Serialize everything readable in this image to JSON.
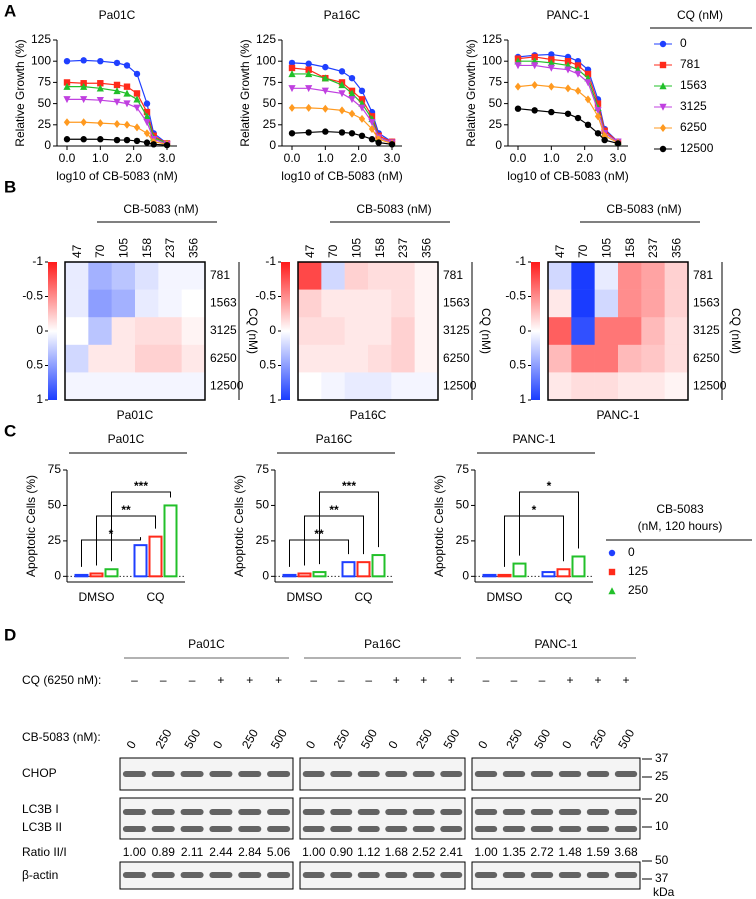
{
  "panel_labels": [
    "A",
    "B",
    "C",
    "D"
  ],
  "chart_data": [
    {
      "type": "line",
      "title": "Pa01C",
      "xlabel": "log10 of CB-5083 (nM)",
      "ylabel": "Relative Growth (%)",
      "legend_title": "CQ (nM)",
      "x": [
        0,
        0.5,
        1.0,
        1.5,
        1.8,
        2.1,
        2.4,
        2.6,
        3.0
      ],
      "xlim": [
        -0.3,
        3.3
      ],
      "xticks": [
        {
          "value": 0,
          "label": "0.0"
        },
        {
          "value": 1,
          "label": "1.0"
        },
        {
          "value": 2,
          "label": "2.0"
        },
        {
          "value": 3,
          "label": "3.0"
        }
      ],
      "ylim": [
        0,
        125
      ],
      "yticks": [
        0,
        25,
        50,
        75,
        100,
        125
      ],
      "series": [
        {
          "name": "0",
          "color": "#1f3fff",
          "values": [
            100,
            101,
            100,
            98,
            95,
            85,
            50,
            15,
            3
          ]
        },
        {
          "name": "781",
          "color": "#ff2a1a",
          "values": [
            75,
            74,
            74,
            72,
            70,
            62,
            40,
            12,
            3
          ]
        },
        {
          "name": "1563",
          "color": "#22c02a",
          "values": [
            70,
            70,
            68,
            65,
            62,
            55,
            35,
            10,
            3
          ]
        },
        {
          "name": "3125",
          "color": "#c040e0",
          "values": [
            55,
            55,
            54,
            52,
            50,
            45,
            28,
            8,
            2
          ]
        },
        {
          "name": "6250",
          "color": "#ff9a20",
          "values": [
            28,
            28,
            27,
            26,
            25,
            22,
            15,
            5,
            2
          ]
        },
        {
          "name": "12500",
          "color": "#000000",
          "values": [
            8,
            8,
            8,
            7,
            7,
            6,
            4,
            2,
            1
          ]
        }
      ]
    },
    {
      "type": "line",
      "title": "Pa16C",
      "xlabel": "log10 of CB-5083 (nM)",
      "ylabel": "Relative Growth (%)",
      "x": [
        0,
        0.5,
        1.0,
        1.5,
        1.8,
        2.1,
        2.4,
        2.6,
        3.0
      ],
      "xlim": [
        -0.3,
        3.3
      ],
      "xticks": [
        {
          "value": 0,
          "label": "0.0"
        },
        {
          "value": 1,
          "label": "1.0"
        },
        {
          "value": 2,
          "label": "2.0"
        },
        {
          "value": 3,
          "label": "3.0"
        }
      ],
      "ylim": [
        0,
        125
      ],
      "yticks": [
        0,
        25,
        50,
        75,
        100,
        125
      ],
      "series": [
        {
          "values": [
            98,
            97,
            93,
            88,
            80,
            65,
            40,
            15,
            5
          ]
        },
        {
          "values": [
            92,
            90,
            80,
            75,
            65,
            55,
            35,
            12,
            5
          ]
        },
        {
          "values": [
            85,
            85,
            80,
            72,
            62,
            50,
            32,
            10,
            4
          ]
        },
        {
          "values": [
            68,
            68,
            65,
            62,
            55,
            45,
            28,
            10,
            4
          ]
        },
        {
          "values": [
            45,
            45,
            44,
            42,
            38,
            32,
            20,
            8,
            3
          ]
        },
        {
          "values": [
            15,
            16,
            17,
            16,
            15,
            12,
            8,
            4,
            2
          ]
        }
      ]
    },
    {
      "type": "line",
      "title": "PANC-1",
      "xlabel": "log10 of CB-5083 (nM)",
      "ylabel": "Relative Growth (%)",
      "x": [
        0,
        0.5,
        1.0,
        1.5,
        1.8,
        2.1,
        2.4,
        2.6,
        3.0
      ],
      "xlim": [
        -0.3,
        3.3
      ],
      "xticks": [
        {
          "value": 0,
          "label": "0.0"
        },
        {
          "value": 1,
          "label": "1.0"
        },
        {
          "value": 2,
          "label": "2.0"
        },
        {
          "value": 3,
          "label": "3.0"
        }
      ],
      "ylim": [
        0,
        125
      ],
      "yticks": [
        0,
        25,
        50,
        75,
        100,
        125
      ],
      "series": [
        {
          "values": [
            105,
            107,
            108,
            105,
            100,
            90,
            55,
            20,
            5
          ]
        },
        {
          "values": [
            103,
            105,
            102,
            100,
            95,
            85,
            50,
            18,
            5
          ]
        },
        {
          "values": [
            100,
            100,
            98,
            95,
            90,
            80,
            45,
            15,
            5
          ]
        },
        {
          "values": [
            95,
            95,
            92,
            90,
            85,
            75,
            42,
            15,
            5
          ]
        },
        {
          "values": [
            70,
            72,
            70,
            68,
            65,
            55,
            35,
            12,
            4
          ]
        },
        {
          "values": [
            44,
            42,
            40,
            38,
            33,
            25,
            15,
            7,
            3
          ]
        }
      ]
    },
    {
      "type": "heatmap",
      "title": "Pa01C",
      "xlabel": "CB-5083 (nM)",
      "ylabel": "CQ (nM)",
      "x": [
        "47",
        "70",
        "105",
        "158",
        "237",
        "356"
      ],
      "y": [
        "781",
        "1563",
        "3125",
        "6250",
        "12500"
      ],
      "zlim": [
        -1,
        1
      ],
      "zticks": [
        -1,
        -0.5,
        0,
        0.5,
        1
      ],
      "colors": [
        "#ff1a1a",
        "#ffffff",
        "#1a3cff"
      ],
      "values": [
        [
          0.1,
          0.4,
          0.3,
          0.15,
          0.05,
          0.05
        ],
        [
          0.1,
          0.5,
          0.4,
          0.1,
          0.05,
          0
        ],
        [
          0,
          0.3,
          -0.1,
          -0.15,
          -0.15,
          -0.05
        ],
        [
          0.2,
          -0.1,
          -0.1,
          -0.2,
          -0.2,
          -0.1
        ],
        [
          0.05,
          0.05,
          0.05,
          0.05,
          0.05,
          0.05
        ]
      ]
    },
    {
      "type": "heatmap",
      "title": "Pa16C",
      "xlabel": "CB-5083 (nM)",
      "ylabel": "CQ (nM)",
      "x": [
        "47",
        "70",
        "105",
        "158",
        "237",
        "356"
      ],
      "y": [
        "781",
        "1563",
        "3125",
        "6250",
        "12500"
      ],
      "zlim": [
        -1,
        1
      ],
      "zticks": [
        -1,
        -0.5,
        0,
        0.5,
        1
      ],
      "colors": [
        "#ff1a1a",
        "#ffffff",
        "#1a3cff"
      ],
      "values": [
        [
          -0.8,
          0.2,
          -0.2,
          -0.15,
          -0.15,
          -0.05
        ],
        [
          -0.2,
          -0.1,
          -0.1,
          -0.1,
          -0.15,
          -0.05
        ],
        [
          -0.15,
          -0.15,
          -0.1,
          -0.1,
          -0.2,
          -0.05
        ],
        [
          -0.1,
          -0.1,
          -0.1,
          -0.15,
          -0.2,
          -0.05
        ],
        [
          0,
          0.05,
          0.1,
          0.1,
          0.05,
          0.05
        ]
      ]
    },
    {
      "type": "heatmap",
      "title": "PANC-1",
      "xlabel": "CB-5083 (nM)",
      "ylabel": "CQ (nM)",
      "x": [
        "47",
        "70",
        "105",
        "158",
        "237",
        "356"
      ],
      "y": [
        "781",
        "1563",
        "3125",
        "6250",
        "12500"
      ],
      "zlim": [
        -1,
        1
      ],
      "zticks": [
        -1,
        -0.5,
        0,
        0.5,
        1
      ],
      "colors": [
        "#ff1a1a",
        "#ffffff",
        "#1a3cff"
      ],
      "values": [
        [
          0.2,
          1.0,
          0.1,
          -0.5,
          -0.4,
          -0.2
        ],
        [
          -0.1,
          1.0,
          0.2,
          -0.5,
          -0.4,
          -0.2
        ],
        [
          -0.7,
          0.9,
          -0.6,
          -0.6,
          -0.3,
          -0.15
        ],
        [
          -0.3,
          -0.6,
          -0.6,
          -0.3,
          -0.25,
          -0.15
        ],
        [
          -0.1,
          -0.15,
          -0.15,
          -0.1,
          -0.1,
          -0.05
        ]
      ]
    },
    {
      "type": "bar",
      "title": "Pa01C",
      "ylabel": "Apoptotic Cells (%)",
      "legend_title": [
        "CB-5083",
        "(nM, 120 hours)"
      ],
      "categories": [
        "DMSO",
        "CQ"
      ],
      "ylim": [
        -4,
        75
      ],
      "yticks": [
        0,
        25,
        50,
        75
      ],
      "annotations": [
        "*",
        "**",
        "***"
      ],
      "series": [
        {
          "name": "0",
          "color": "#1f3fff",
          "values": [
            1,
            22
          ]
        },
        {
          "name": "125",
          "color": "#ff2a1a",
          "values": [
            2,
            28
          ]
        },
        {
          "name": "250",
          "color": "#22c02a",
          "values": [
            5,
            50
          ]
        }
      ]
    },
    {
      "type": "bar",
      "title": "Pa16C",
      "ylabel": "Apoptotic Cells (%)",
      "categories": [
        "DMSO",
        "CQ"
      ],
      "ylim": [
        -4,
        75
      ],
      "yticks": [
        0,
        25,
        50,
        75
      ],
      "annotations": [
        "**",
        "**",
        "***"
      ],
      "series": [
        {
          "values": [
            1,
            10
          ]
        },
        {
          "values": [
            2,
            10
          ]
        },
        {
          "values": [
            3,
            15
          ]
        }
      ]
    },
    {
      "type": "bar",
      "title": "PANC-1",
      "ylabel": "Apoptotic Cells (%)",
      "categories": [
        "DMSO",
        "CQ"
      ],
      "ylim": [
        -4,
        75
      ],
      "yticks": [
        0,
        25,
        50,
        75
      ],
      "annotations": [
        "*",
        "*"
      ],
      "series": [
        {
          "values": [
            1,
            3
          ]
        },
        {
          "values": [
            1,
            5
          ]
        },
        {
          "values": [
            9,
            14
          ]
        }
      ]
    }
  ],
  "blot": {
    "cell_lines": [
      "Pa01C",
      "Pa16C",
      "PANC-1"
    ],
    "cq_label": "CQ (6250 nM):",
    "cq": [
      "–",
      "–",
      "–",
      "+",
      "+",
      "+"
    ],
    "cb_label": "CB-5083 (nM):",
    "cb": [
      "0",
      "250",
      "500",
      "0",
      "250",
      "500"
    ],
    "bands": [
      "CHOP",
      "LC3B I",
      "LC3B II",
      "β-actin"
    ],
    "ratio_label": "Ratio II/I",
    "ratios": [
      [
        "1.00",
        "0.89",
        "2.11",
        "2.44",
        "2.84",
        "5.06"
      ],
      [
        "1.00",
        "0.90",
        "1.12",
        "1.68",
        "2.52",
        "2.41"
      ],
      [
        "1.00",
        "1.35",
        "2.72",
        "1.48",
        "1.59",
        "3.68"
      ]
    ],
    "mw": [
      [
        "37",
        "25"
      ],
      [
        "20",
        "10"
      ],
      [
        "50",
        "37"
      ]
    ],
    "mw_unit": "kDa"
  }
}
